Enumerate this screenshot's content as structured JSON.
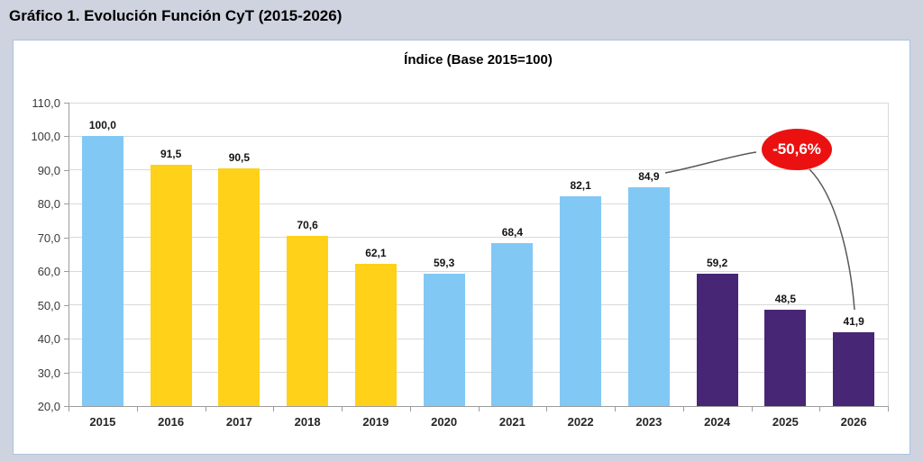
{
  "page": {
    "title": "Gráfico 1. Evolución Función CyT (2015-2026)",
    "background_color": "#CFD3DF",
    "panel_color": "#FFFFFF",
    "panel_border_color": "#A9C3DE"
  },
  "chart_data": {
    "type": "bar",
    "title": "Índice (Base 2015=100)",
    "categories": [
      "2015",
      "2016",
      "2017",
      "2018",
      "2019",
      "2020",
      "2021",
      "2022",
      "2023",
      "2024",
      "2025",
      "2026"
    ],
    "values": [
      100.0,
      91.5,
      90.5,
      70.6,
      62.1,
      59.3,
      68.4,
      82.1,
      84.9,
      59.2,
      48.5,
      41.9
    ],
    "labels": [
      "100,0",
      "91,5",
      "90,5",
      "70,6",
      "62,1",
      "59,3",
      "68,4",
      "82,1",
      "84,9",
      "59,2",
      "48,5",
      "41,9"
    ],
    "bar_colors": [
      "#82C8F5",
      "#FFD118",
      "#FFD118",
      "#FFD118",
      "#FFD118",
      "#82C8F5",
      "#82C8F5",
      "#82C8F5",
      "#82C8F5",
      "#482676",
      "#482676",
      "#482676"
    ],
    "color_legend": {
      "light_blue": "#82C8F5",
      "yellow": "#FFD118",
      "purple": "#482676"
    },
    "xlabel": "",
    "ylabel": "",
    "ylim": [
      20,
      110
    ],
    "ytick_step": 10,
    "yticks": [
      {
        "value": 110,
        "label": "110,0"
      },
      {
        "value": 100,
        "label": "100,0"
      },
      {
        "value": 90,
        "label": "90,0"
      },
      {
        "value": 80,
        "label": "80,0"
      },
      {
        "value": 70,
        "label": "70,0"
      },
      {
        "value": 60,
        "label": "60,0"
      },
      {
        "value": 50,
        "label": "50,0"
      },
      {
        "value": 40,
        "label": "40,0"
      },
      {
        "value": 30,
        "label": "30,0"
      },
      {
        "value": 20,
        "label": "20,0"
      }
    ],
    "grid": true,
    "legend": "none",
    "annotation": {
      "text": "-50,6%",
      "shape": "ellipse",
      "fill": "#EC1111",
      "text_color": "#FFFFFF",
      "connector_color": "#595959",
      "from_category": "2023",
      "to_category": "2026"
    }
  }
}
